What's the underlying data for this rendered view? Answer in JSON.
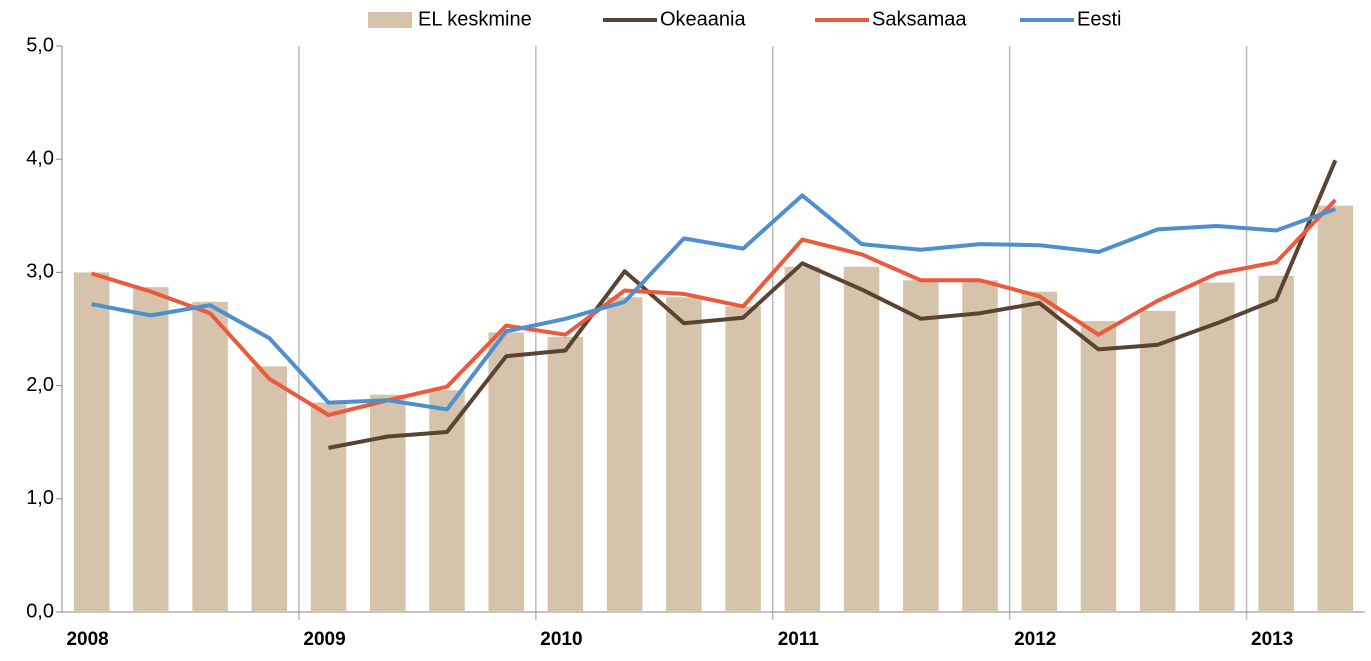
{
  "chart_data": {
    "type": "combo",
    "categories": [
      "2008",
      null,
      null,
      null,
      "2009",
      null,
      null,
      null,
      "2010",
      null,
      null,
      null,
      "2011",
      null,
      null,
      null,
      "2012",
      null,
      null,
      null,
      "2013",
      null
    ],
    "series": [
      {
        "name": "EL keskmine",
        "type": "bar",
        "color": "#d5c4ab",
        "values": [
          3.0,
          2.87,
          2.74,
          2.17,
          1.85,
          1.92,
          1.96,
          2.47,
          2.43,
          2.78,
          2.78,
          2.7,
          3.05,
          3.05,
          2.93,
          2.93,
          2.83,
          2.57,
          2.66,
          2.91,
          2.97,
          3.59
        ]
      },
      {
        "name": "Okeaania",
        "type": "line",
        "color": "#5b4331",
        "values": [
          null,
          null,
          null,
          null,
          1.45,
          1.55,
          1.59,
          2.26,
          2.31,
          3.01,
          2.55,
          2.6,
          3.08,
          2.85,
          2.59,
          2.64,
          2.73,
          2.32,
          2.36,
          2.55,
          2.76,
          3.99
        ]
      },
      {
        "name": "Saksamaa",
        "type": "line",
        "color": "#eb5a3c",
        "values": [
          2.99,
          2.83,
          2.64,
          2.06,
          1.74,
          1.87,
          1.99,
          2.53,
          2.45,
          2.84,
          2.81,
          2.7,
          3.29,
          3.16,
          2.93,
          2.93,
          2.79,
          2.45,
          2.75,
          2.99,
          3.09,
          3.64
        ]
      },
      {
        "name": "Eesti",
        "type": "line",
        "color": "#4f8fcd",
        "values": [
          2.72,
          2.62,
          2.71,
          2.42,
          1.85,
          1.87,
          1.79,
          2.48,
          2.59,
          2.74,
          3.3,
          3.21,
          3.68,
          3.25,
          3.2,
          3.25,
          3.24,
          3.18,
          3.38,
          3.41,
          3.37,
          3.56
        ]
      }
    ],
    "ylim": [
      0,
      5
    ],
    "yticks": [
      {
        "value": 0,
        "label": "0,0"
      },
      {
        "value": 1,
        "label": "1,0"
      },
      {
        "value": 2,
        "label": "2,0"
      },
      {
        "value": 3,
        "label": "3,0"
      },
      {
        "value": 4,
        "label": "4,0"
      },
      {
        "value": 5,
        "label": "5,0"
      }
    ],
    "legend": "top"
  }
}
